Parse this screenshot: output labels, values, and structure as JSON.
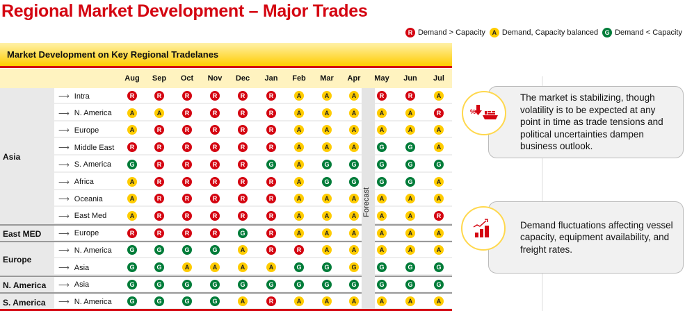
{
  "title": "Regional Market Development – Major Trades",
  "legend": [
    {
      "code": "R",
      "label": "Demand > Capacity"
    },
    {
      "code": "A",
      "label": "Demand, Capacity balanced"
    },
    {
      "code": "G",
      "label": "Demand < Capacity"
    }
  ],
  "panel_title": "Market Development on Key Regional Tradelanes",
  "months": [
    "Aug",
    "Sep",
    "Oct",
    "Nov",
    "Dec",
    "Jan",
    "Feb",
    "Mar",
    "Apr",
    "May",
    "Jun",
    "Jul"
  ],
  "forecast_label": "Forecast",
  "groups": [
    {
      "name": "Asia",
      "lanes": [
        {
          "to": "Intra",
          "v": [
            "R",
            "R",
            "R",
            "R",
            "R",
            "R",
            "A",
            "A",
            "A",
            "R",
            "R",
            "A"
          ]
        },
        {
          "to": "N. America",
          "v": [
            "A",
            "A",
            "R",
            "R",
            "R",
            "R",
            "A",
            "A",
            "A",
            "A",
            "A",
            "R"
          ]
        },
        {
          "to": "Europe",
          "v": [
            "A",
            "R",
            "R",
            "R",
            "R",
            "R",
            "A",
            "A",
            "A",
            "A",
            "A",
            "A"
          ]
        },
        {
          "to": "Middle East",
          "v": [
            "R",
            "R",
            "R",
            "R",
            "R",
            "R",
            "A",
            "A",
            "A",
            "G",
            "G",
            "A"
          ]
        },
        {
          "to": "S. America",
          "v": [
            "G",
            "R",
            "R",
            "R",
            "R",
            "G",
            "A",
            "G",
            "G",
            "G",
            "G",
            "G"
          ]
        },
        {
          "to": "Africa",
          "v": [
            "A",
            "R",
            "R",
            "R",
            "R",
            "R",
            "A",
            "G",
            "G",
            "G",
            "G",
            "A"
          ]
        },
        {
          "to": "Oceania",
          "v": [
            "A",
            "R",
            "R",
            "R",
            "R",
            "R",
            "A",
            "A",
            "A",
            "A",
            "A",
            "A"
          ]
        },
        {
          "to": "East Med",
          "v": [
            "A",
            "R",
            "R",
            "R",
            "R",
            "R",
            "A",
            "A",
            "A",
            "A",
            "A",
            "R"
          ]
        }
      ]
    },
    {
      "name": "East MED",
      "lanes": [
        {
          "to": "Europe",
          "v": [
            "R",
            "R",
            "R",
            "R",
            "G",
            "R",
            "A",
            "A",
            "A",
            "A",
            "A",
            "A"
          ]
        }
      ]
    },
    {
      "name": "Europe",
      "lanes": [
        {
          "to": "N. America",
          "v": [
            "G",
            "G",
            "G",
            "G",
            "A",
            "R",
            "R",
            "A",
            "A",
            "A",
            "A",
            "A"
          ]
        },
        {
          "to": "Asia",
          "v": [
            "G",
            "G",
            "A",
            "A",
            "A",
            "A",
            "G",
            "G",
            "Gy",
            "G",
            "G",
            "G"
          ]
        }
      ]
    },
    {
      "name": "N. America",
      "lanes": [
        {
          "to": "Asia",
          "v": [
            "G",
            "G",
            "G",
            "G",
            "G",
            "G",
            "G",
            "G",
            "G",
            "G",
            "G",
            "G"
          ]
        }
      ]
    },
    {
      "name": "S. America",
      "lanes": [
        {
          "to": "N. America",
          "v": [
            "G",
            "G",
            "G",
            "G",
            "A",
            "R",
            "A",
            "A",
            "A",
            "A",
            "A",
            "A"
          ]
        }
      ]
    }
  ],
  "cards": [
    {
      "icon": "rate-down-ship-icon",
      "text": "The market is stabilizing, though volatility is to be expected at any point in time as trade tensions and political uncertainties dampen business outlook."
    },
    {
      "icon": "rising-bar-chart-icon",
      "text": "Demand fluctuations affecting vessel capacity, equipment availability, and freight rates."
    }
  ]
}
